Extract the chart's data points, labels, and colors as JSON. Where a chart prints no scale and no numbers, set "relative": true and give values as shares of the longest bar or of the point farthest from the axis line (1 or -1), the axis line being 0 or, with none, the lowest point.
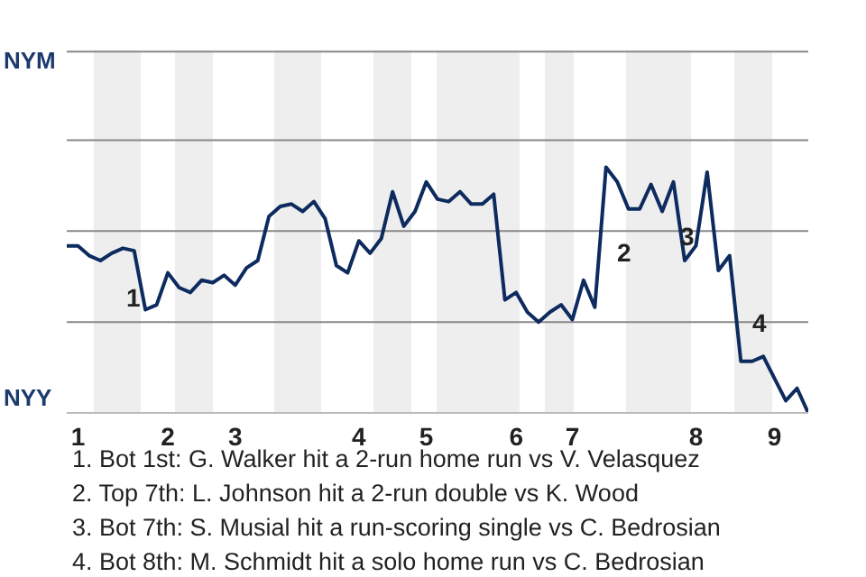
{
  "chart_data": {
    "type": "line",
    "relative": true,
    "categories": [
      null,
      "1",
      null,
      null,
      null,
      null,
      null,
      null,
      null,
      "2",
      null,
      null,
      null,
      null,
      null,
      "3",
      null,
      null,
      null,
      null,
      null,
      null,
      null,
      null,
      null,
      null,
      "4",
      null,
      null,
      null,
      null,
      null,
      "5",
      null,
      null,
      null,
      null,
      null,
      null,
      null,
      "6",
      null,
      null,
      null,
      null,
      "7",
      null,
      null,
      null,
      null,
      null,
      null,
      null,
      null,
      null,
      null,
      "8",
      null,
      null,
      null,
      null,
      null,
      null,
      "9",
      null,
      null,
      null
    ],
    "series": [
      {
        "color": "#0d2b5e",
        "values": [
          0.68,
          0.68,
          0.64,
          0.62,
          0.65,
          0.67,
          0.66,
          0.42,
          0.44,
          0.57,
          0.51,
          0.49,
          0.54,
          0.53,
          0.56,
          0.52,
          0.59,
          0.62,
          0.8,
          0.84,
          0.85,
          0.82,
          0.86,
          0.79,
          0.6,
          0.57,
          0.7,
          0.65,
          0.71,
          0.9,
          0.76,
          0.82,
          0.94,
          0.87,
          0.86,
          0.9,
          0.85,
          0.85,
          0.89,
          0.46,
          0.49,
          0.41,
          0.37,
          0.41,
          0.44,
          0.38,
          0.54,
          0.43,
          1,
          0.94,
          0.83,
          0.83,
          0.93,
          0.82,
          0.94,
          0.62,
          0.68,
          0.98,
          0.58,
          0.64,
          0.21,
          0.21,
          0.23,
          0.14,
          0.05,
          0.1,
          0
        ]
      }
    ],
    "line_style": "solid",
    "ref_lines": [
      {
        "axis": "y",
        "value": 0.37,
        "color": "#888888"
      },
      {
        "axis": "y",
        "value": 0.74,
        "color": "#888888"
      },
      {
        "axis": "y",
        "value": 1.11,
        "color": "#888888"
      },
      {
        "axis": "y",
        "value": 1.47,
        "color": "#888888"
      }
    ],
    "annotations": [
      "NYM",
      "NYY",
      "1",
      "2",
      "3",
      "4",
      "1. Bot 1st: G. Walker hit a 2-run home run vs V. Velasquez",
      "2. Top 7th: L. Johnson hit a 2-run double vs K. Wood",
      "3. Bot 7th: S. Musial hit a run-scoring single vs C. Bedrosian",
      "4. Bot 8th: M. Schmidt hit a solo home run vs C. Bedrosian"
    ]
  }
}
